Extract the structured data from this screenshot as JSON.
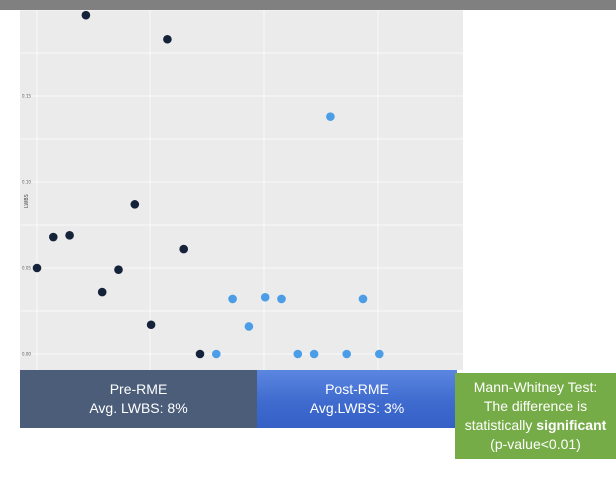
{
  "colors": {
    "pre_points": "#15233a",
    "post_points": "#4a9de6",
    "panel_bg": "#ebebeb",
    "grid": "#ffffff",
    "pre_box": "#4b5d79",
    "post_box": "#3f6bcf",
    "test_box": "#76ac47"
  },
  "chart_data": {
    "type": "scatter",
    "title": "",
    "xlabel": "",
    "ylabel": "LWBS",
    "ylim": [
      0,
      0.2
    ],
    "yticks": [
      0.0,
      0.05,
      0.1,
      0.15
    ],
    "ytick_labels": [
      "0.00",
      "0.05",
      "0.10",
      "0.15"
    ],
    "grid": true,
    "series": [
      {
        "name": "Pre-RME",
        "x": [
          1,
          2,
          3,
          4,
          5,
          6,
          7,
          8,
          9,
          10,
          11
        ],
        "y": [
          0.05,
          0.068,
          0.069,
          0.197,
          0.036,
          0.049,
          0.087,
          0.017,
          0.183,
          0.061,
          0.0
        ]
      },
      {
        "name": "Post-RME",
        "x": [
          12,
          13,
          14,
          15,
          16,
          17,
          18,
          19,
          20,
          21,
          22
        ],
        "y": [
          0.0,
          0.032,
          0.016,
          0.033,
          0.032,
          0.0,
          0.0,
          0.138,
          0.0,
          0.032,
          0.0
        ]
      }
    ]
  },
  "groups": {
    "pre": {
      "title": "Pre-RME",
      "avg": "Avg. LWBS: 8%"
    },
    "post": {
      "title": "Post-RME",
      "avg": "Avg.LWBS:  3%"
    }
  },
  "test": {
    "line1": "Mann-Whitney Test:",
    "line2": "The difference is",
    "line3_prefix": "statistically ",
    "line3_bold": "significant",
    "line4": "(p-value<0.01)"
  }
}
